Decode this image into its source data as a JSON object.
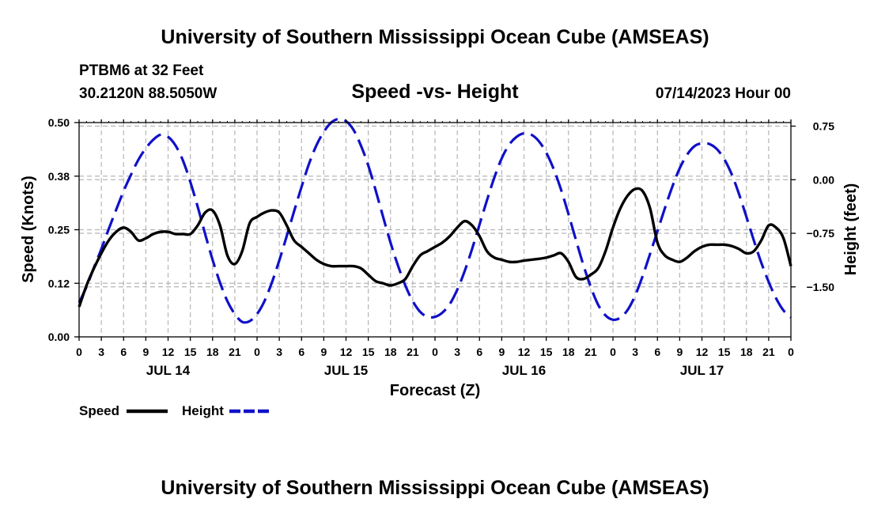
{
  "header": {
    "title": "University of Southern Mississippi Ocean Cube (AMSEAS)",
    "station": "PTBM6 at 32 Feet",
    "location": "30.2120N  88.5050W",
    "date": "07/14/2023 Hour 00"
  },
  "footer": {
    "title": "University of Southern Mississippi Ocean Cube (AMSEAS)"
  },
  "colors": {
    "speed": "#000000",
    "height": "#1010c8"
  },
  "chart_data": {
    "type": "line",
    "title": "Speed -vs- Height",
    "xlabel": "Forecast (Z)",
    "ylabel": "Speed (Knots)",
    "y2label": "Height (feet)",
    "x_range_hours": [
      0,
      96
    ],
    "ylim": [
      0,
      0.5
    ],
    "y2lim": [
      -2.2,
      0.8
    ],
    "y_ticks": [
      {
        "value": 0,
        "label": "0.00"
      },
      {
        "value": 0.125,
        "label": "0.12"
      },
      {
        "value": 0.25,
        "label": "0.25"
      },
      {
        "value": 0.375,
        "label": "0.38"
      },
      {
        "value": 0.5,
        "label": "0.50"
      }
    ],
    "y2_ticks": [
      {
        "value": 0.75,
        "label": "0.75"
      },
      {
        "value": 0,
        "label": "0.00"
      },
      {
        "value": -0.75,
        "label": "−0.75"
      },
      {
        "value": -1.5,
        "label": "−1.50"
      }
    ],
    "x_ticks": [
      {
        "hour": 0,
        "label": "0"
      },
      {
        "hour": 3,
        "label": "3"
      },
      {
        "hour": 6,
        "label": "6"
      },
      {
        "hour": 9,
        "label": "9"
      },
      {
        "hour": 12,
        "label": "12"
      },
      {
        "hour": 15,
        "label": "15"
      },
      {
        "hour": 18,
        "label": "18"
      },
      {
        "hour": 21,
        "label": "21"
      },
      {
        "hour": 24,
        "label": "0"
      },
      {
        "hour": 27,
        "label": "3"
      },
      {
        "hour": 30,
        "label": "6"
      },
      {
        "hour": 33,
        "label": "9"
      },
      {
        "hour": 36,
        "label": "12"
      },
      {
        "hour": 39,
        "label": "15"
      },
      {
        "hour": 42,
        "label": "18"
      },
      {
        "hour": 45,
        "label": "21"
      },
      {
        "hour": 48,
        "label": "0"
      },
      {
        "hour": 51,
        "label": "3"
      },
      {
        "hour": 54,
        "label": "6"
      },
      {
        "hour": 57,
        "label": "9"
      },
      {
        "hour": 60,
        "label": "12"
      },
      {
        "hour": 63,
        "label": "15"
      },
      {
        "hour": 66,
        "label": "18"
      },
      {
        "hour": 69,
        "label": "21"
      },
      {
        "hour": 72,
        "label": "0"
      },
      {
        "hour": 75,
        "label": "3"
      },
      {
        "hour": 78,
        "label": "6"
      },
      {
        "hour": 81,
        "label": "9"
      },
      {
        "hour": 84,
        "label": "12"
      },
      {
        "hour": 87,
        "label": "15"
      },
      {
        "hour": 90,
        "label": "18"
      },
      {
        "hour": 93,
        "label": "21"
      },
      {
        "hour": 96,
        "label": "0"
      }
    ],
    "day_labels": [
      {
        "hour": 12,
        "label": "JUL 14"
      },
      {
        "hour": 36,
        "label": "JUL 15"
      },
      {
        "hour": 60,
        "label": "JUL 16"
      },
      {
        "hour": 84,
        "label": "JUL 17"
      }
    ],
    "series": [
      {
        "name": "Speed",
        "axis": "left",
        "style": "solid",
        "x": [
          0,
          1,
          2,
          3,
          4,
          5,
          6,
          7,
          8,
          9,
          10,
          11,
          12,
          13,
          14,
          15,
          16,
          17,
          18,
          19,
          20,
          21,
          22,
          23,
          24,
          25,
          26,
          27,
          28,
          29,
          30,
          31,
          32,
          33,
          34,
          35,
          36,
          37,
          38,
          39,
          40,
          41,
          42,
          43,
          44,
          45,
          46,
          47,
          48,
          49,
          50,
          51,
          52,
          53,
          54,
          55,
          56,
          57,
          58,
          59,
          60,
          61,
          62,
          63,
          64,
          65,
          66,
          67,
          68,
          69,
          70,
          71,
          72,
          73,
          74,
          75,
          76,
          77,
          78,
          79,
          80,
          81,
          82,
          83,
          84,
          85,
          86,
          87,
          88,
          89,
          90,
          91,
          92,
          93,
          94,
          95,
          96
        ],
        "values": [
          0.07,
          0.12,
          0.16,
          0.195,
          0.225,
          0.245,
          0.255,
          0.245,
          0.225,
          0.23,
          0.24,
          0.245,
          0.245,
          0.24,
          0.24,
          0.24,
          0.26,
          0.29,
          0.295,
          0.26,
          0.19,
          0.17,
          0.2,
          0.265,
          0.28,
          0.29,
          0.295,
          0.29,
          0.26,
          0.225,
          0.21,
          0.195,
          0.18,
          0.17,
          0.165,
          0.165,
          0.165,
          0.165,
          0.16,
          0.145,
          0.13,
          0.125,
          0.12,
          0.125,
          0.135,
          0.165,
          0.19,
          0.2,
          0.21,
          0.22,
          0.235,
          0.255,
          0.27,
          0.26,
          0.235,
          0.2,
          0.185,
          0.18,
          0.175,
          0.175,
          0.178,
          0.18,
          0.182,
          0.185,
          0.19,
          0.195,
          0.175,
          0.14,
          0.135,
          0.145,
          0.16,
          0.2,
          0.255,
          0.3,
          0.33,
          0.345,
          0.34,
          0.3,
          0.22,
          0.19,
          0.18,
          0.175,
          0.185,
          0.2,
          0.21,
          0.215,
          0.215,
          0.215,
          0.212,
          0.205,
          0.195,
          0.2,
          0.225,
          0.26,
          0.255,
          0.23,
          0.165
        ]
      },
      {
        "name": "Height",
        "axis": "right",
        "style": "dashed",
        "x": [
          0,
          1,
          2,
          3,
          4,
          5,
          6,
          7,
          8,
          9,
          10,
          11,
          12,
          13,
          14,
          15,
          16,
          17,
          18,
          19,
          20,
          21,
          22,
          23,
          24,
          25,
          26,
          27,
          28,
          29,
          30,
          31,
          32,
          33,
          34,
          35,
          36,
          37,
          38,
          39,
          40,
          41,
          42,
          43,
          44,
          45,
          46,
          47,
          48,
          49,
          50,
          51,
          52,
          53,
          54,
          55,
          56,
          57,
          58,
          59,
          60,
          61,
          62,
          63,
          64,
          65,
          66,
          67,
          68,
          69,
          70,
          71,
          72,
          73,
          74,
          75,
          76,
          77,
          78,
          79,
          80,
          81,
          82,
          83,
          84,
          85,
          86,
          87,
          88,
          89,
          90,
          91,
          92,
          93,
          94,
          95,
          96
        ],
        "values": [
          -1.72,
          -1.5,
          -1.23,
          -0.97,
          -0.69,
          -0.42,
          -0.16,
          0.07,
          0.28,
          0.44,
          0.56,
          0.63,
          0.6,
          0.48,
          0.27,
          -0.03,
          -0.38,
          -0.76,
          -1.12,
          -1.44,
          -1.7,
          -1.88,
          -1.99,
          -1.98,
          -1.88,
          -1.7,
          -1.44,
          -1.13,
          -0.79,
          -0.44,
          -0.1,
          0.22,
          0.48,
          0.67,
          0.8,
          0.85,
          0.82,
          0.7,
          0.48,
          0.2,
          -0.15,
          -0.52,
          -0.88,
          -1.2,
          -1.48,
          -1.7,
          -1.85,
          -1.92,
          -1.92,
          -1.86,
          -1.74,
          -1.54,
          -1.28,
          -0.97,
          -0.63,
          -0.29,
          0.03,
          0.3,
          0.49,
          0.6,
          0.65,
          0.63,
          0.54,
          0.38,
          0.15,
          -0.14,
          -0.48,
          -0.84,
          -1.19,
          -1.5,
          -1.75,
          -1.9,
          -1.96,
          -1.93,
          -1.82,
          -1.62,
          -1.35,
          -1.04,
          -0.72,
          -0.4,
          -0.1,
          0.16,
          0.35,
          0.47,
          0.51,
          0.5,
          0.43,
          0.29,
          0.08,
          -0.2,
          -0.52,
          -0.85,
          -1.16,
          -1.43,
          -1.66,
          -1.83,
          -1.93
        ]
      }
    ],
    "legend": [
      {
        "label": "Speed",
        "style": "solid"
      },
      {
        "label": "Height",
        "style": "dashed"
      }
    ]
  }
}
